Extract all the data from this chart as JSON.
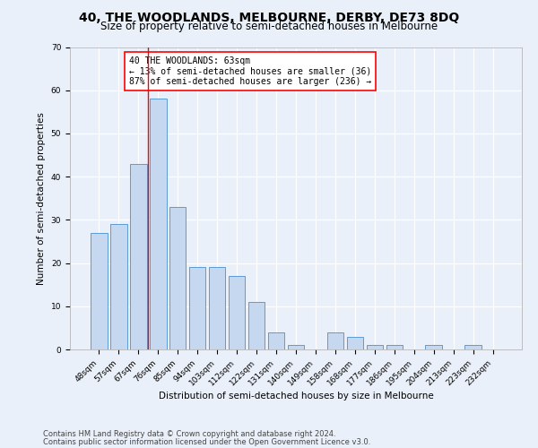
{
  "title": "40, THE WOODLANDS, MELBOURNE, DERBY, DE73 8DQ",
  "subtitle": "Size of property relative to semi-detached houses in Melbourne",
  "xlabel": "Distribution of semi-detached houses by size in Melbourne",
  "ylabel": "Number of semi-detached properties",
  "categories": [
    "48sqm",
    "57sqm",
    "67sqm",
    "76sqm",
    "85sqm",
    "94sqm",
    "103sqm",
    "112sqm",
    "122sqm",
    "131sqm",
    "140sqm",
    "149sqm",
    "158sqm",
    "168sqm",
    "177sqm",
    "186sqm",
    "195sqm",
    "204sqm",
    "213sqm",
    "223sqm",
    "232sqm"
  ],
  "values": [
    27,
    29,
    43,
    58,
    33,
    19,
    19,
    17,
    11,
    4,
    1,
    0,
    4,
    3,
    1,
    1,
    0,
    1,
    0,
    1,
    0
  ],
  "bar_color": "#c5d8f0",
  "bar_edge_color": "#5b9bd5",
  "vline_x": 2.5,
  "vline_color": "red",
  "annotation_title": "40 THE WOODLANDS: 63sqm",
  "annotation_line2": "← 13% of semi-detached houses are smaller (36)",
  "annotation_line3": "87% of semi-detached houses are larger (236) →",
  "footnote1": "Contains HM Land Registry data © Crown copyright and database right 2024.",
  "footnote2": "Contains public sector information licensed under the Open Government Licence v3.0.",
  "ylim": [
    0,
    70
  ],
  "bg_color": "#eaf0f9",
  "grid_color": "#ffffff",
  "title_fontsize": 10,
  "subtitle_fontsize": 8.5,
  "axis_label_fontsize": 7.5,
  "tick_fontsize": 6.5,
  "annotation_fontsize": 7,
  "footnote_fontsize": 6
}
